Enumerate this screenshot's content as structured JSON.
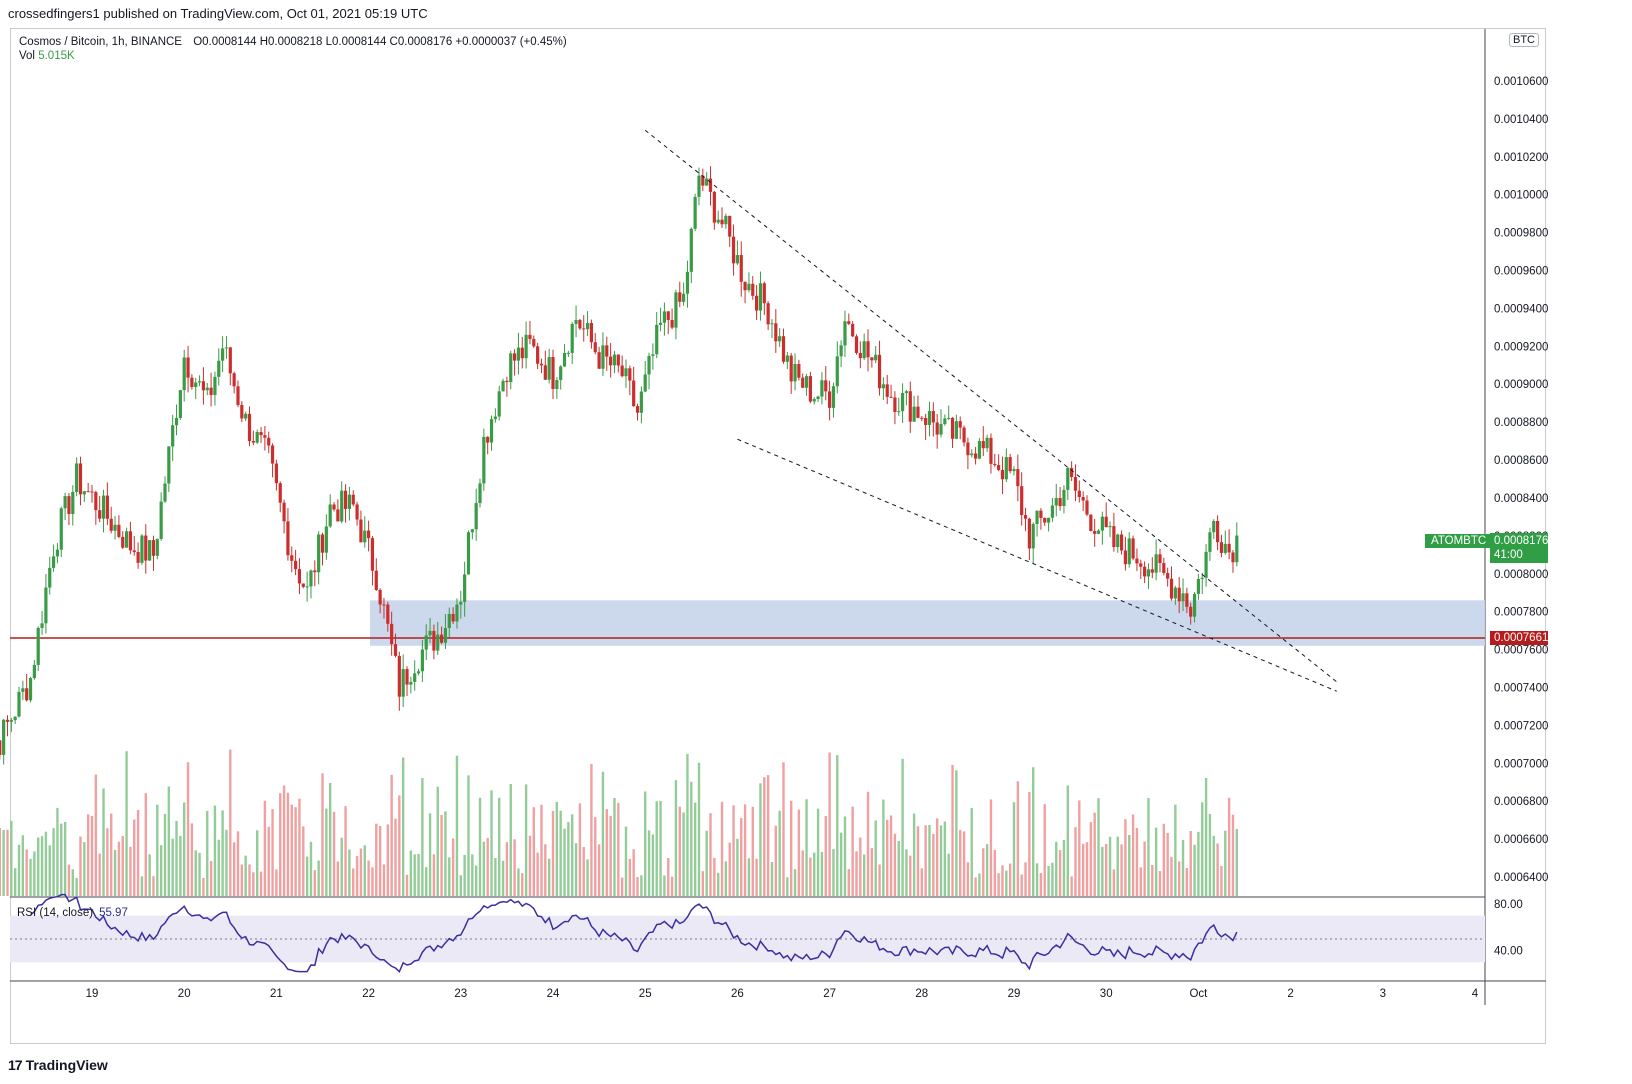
{
  "caption": "crossedfingers1 published on TradingView.com, Oct 01, 2021 05:19 UTC",
  "legend": {
    "symbol": "Cosmos / Bitcoin, 1h, BINANCE",
    "open": "O0.0008144",
    "high": "H0.0008218",
    "low": "L0.0008144",
    "close": "C0.0008176",
    "change": "+0.0000037 (+0.45%)",
    "vol_label": "Vol",
    "vol_value": "5.015K"
  },
  "currency_badge": "BTC",
  "ticker_label": "ATOMBTC",
  "last_price": "0.0008176",
  "countdown": "41:00",
  "support_price": "0.0007661",
  "rsi": {
    "label": "RSI (14, close)",
    "value": "55.97"
  },
  "brand": "TradingView",
  "colors": {
    "up": "#3a9b47",
    "down": "#cc2e2e",
    "vol_up": "#93cc98",
    "vol_down": "#f0a0a0",
    "zone": "#c7d5ea",
    "support": "#b71c1c",
    "rsi_line": "#3a2fa0",
    "rsi_band": "#ece9f7"
  },
  "chart_data": {
    "type": "candlestick",
    "title": "Cosmos / Bitcoin, 1h, BINANCE",
    "x_tick_labels": [
      "19",
      "20",
      "21",
      "22",
      "23",
      "24",
      "25",
      "26",
      "27",
      "28",
      "29",
      "30",
      "Oct",
      "2",
      "3",
      "4"
    ],
    "y_tick_labels": [
      "0.0010600",
      "0.0010400",
      "0.0010200",
      "0.0010000",
      "0.0009800",
      "0.0009600",
      "0.0009400",
      "0.0009200",
      "0.0009000",
      "0.0008800",
      "0.0008600",
      "0.0008400",
      "0.0008200",
      "0.0008000",
      "0.0007800",
      "0.0007600",
      "0.0007400",
      "0.0007200",
      "0.0007000",
      "0.0006800",
      "0.0006600",
      "0.0006400"
    ],
    "ylim": [
      0.000632,
      0.001088
    ],
    "close_anchors": [
      [
        "Sep 18 00:00",
        0.000712
      ],
      [
        "Sep 18 08:00",
        0.000745
      ],
      [
        "Sep 18 14:00",
        0.000815
      ],
      [
        "Sep 18 20:00",
        0.00085
      ],
      [
        "Sep 19 02:00",
        0.000835
      ],
      [
        "Sep 19 10:00",
        0.000815
      ],
      [
        "Sep 19 16:00",
        0.00081
      ],
      [
        "Sep 20 00:00",
        0.000915
      ],
      [
        "Sep 20 06:00",
        0.00089
      ],
      [
        "Sep 20 10:00",
        0.00092
      ],
      [
        "Sep 20 16:00",
        0.00088
      ],
      [
        "Sep 20 22:00",
        0.00086
      ],
      [
        "Sep 21 04:00",
        0.00081
      ],
      [
        "Sep 21 08:00",
        0.00079
      ],
      [
        "Sep 21 14:00",
        0.000835
      ],
      [
        "Sep 21 20:00",
        0.000835
      ],
      [
        "Sep 22 02:00",
        0.0008
      ],
      [
        "Sep 22 08:00",
        0.00074
      ],
      [
        "Sep 22 12:00",
        0.000755
      ],
      [
        "Sep 22 18:00",
        0.000768
      ],
      [
        "Sep 23 00:00",
        0.00079
      ],
      [
        "Sep 23 06:00",
        0.00087
      ],
      [
        "Sep 23 12:00",
        0.00091
      ],
      [
        "Sep 23 18:00",
        0.00092
      ],
      [
        "Sep 24 00:00",
        0.000905
      ],
      [
        "Sep 24 06:00",
        0.000935
      ],
      [
        "Sep 24 12:00",
        0.000915
      ],
      [
        "Sep 24 18:00",
        0.000905
      ],
      [
        "Sep 24 22:00",
        0.000885
      ],
      [
        "Sep 25 04:00",
        0.00093
      ],
      [
        "Sep 25 10:00",
        0.000945
      ],
      [
        "Sep 25 14:00",
        0.00101
      ],
      [
        "Sep 25 20:00",
        0.000985
      ],
      [
        "Sep 26 02:00",
        0.000955
      ],
      [
        "Sep 26 08:00",
        0.00094
      ],
      [
        "Sep 26 14:00",
        0.000905
      ],
      [
        "Sep 26 20:00",
        0.000895
      ],
      [
        "Sep 27 00:00",
        0.000895
      ],
      [
        "Sep 27 04:00",
        0.000935
      ],
      [
        "Sep 27 10:00",
        0.000915
      ],
      [
        "Sep 27 16:00",
        0.000895
      ],
      [
        "Sep 28 00:00",
        0.000885
      ],
      [
        "Sep 28 06:00",
        0.000875
      ],
      [
        "Sep 28 12:00",
        0.00087
      ],
      [
        "Sep 28 18:00",
        0.000862
      ],
      [
        "Sep 29 00:00",
        0.00085
      ],
      [
        "Sep 29 04:00",
        0.00082
      ],
      [
        "Sep 29 10:00",
        0.000835
      ],
      [
        "Sep 29 14:00",
        0.00085
      ],
      [
        "Sep 29 20:00",
        0.00083
      ],
      [
        "Sep 30 02:00",
        0.000815
      ],
      [
        "Sep 30 08:00",
        0.00081
      ],
      [
        "Sep 30 14:00",
        0.0008
      ],
      [
        "Sep 30 20:00",
        0.00079
      ],
      [
        "Sep 30 22:00",
        0.000782
      ],
      [
        "Oct 01 02:00",
        0.00081
      ],
      [
        "Oct 01 04:00",
        0.000828
      ],
      [
        "Oct 01 08:00",
        0.000812
      ],
      [
        "Oct 01 10:00",
        0.000818
      ]
    ],
    "last_candle": {
      "open": 0.0008144,
      "high": 0.0008218,
      "low": 0.0008144,
      "close": 0.0008176
    },
    "support_level": 0.0007661,
    "demand_zone": [
      0.000762,
      0.000786
    ],
    "trendlines": [
      {
        "style": "dashed",
        "from": [
          "Sep 25 00:00",
          0.001034
        ],
        "to": [
          "Oct 02 12:00",
          0.000743
        ]
      },
      {
        "style": "dashed",
        "from": [
          "Sep 26 00:00",
          0.000871
        ],
        "to": [
          "Oct 02 12:00",
          0.000738
        ]
      }
    ],
    "volume": {
      "axis": "none",
      "overlay": "bottom",
      "last": "5.015K"
    },
    "rsi": {
      "period": 14,
      "source": "close",
      "last": 55.97,
      "y_ticks": [
        "80.00",
        "40.00"
      ],
      "band": [
        30,
        70
      ]
    }
  }
}
